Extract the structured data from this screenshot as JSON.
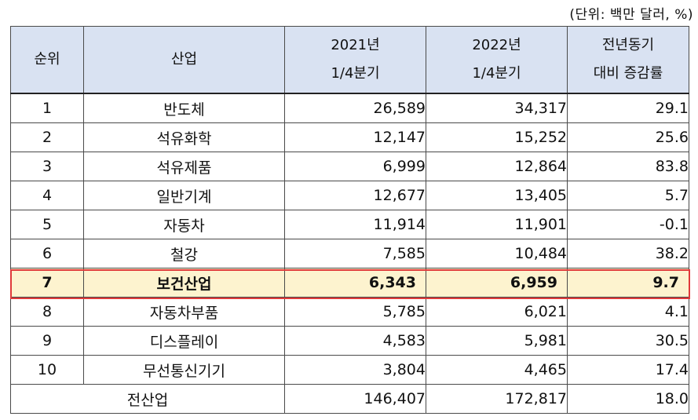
{
  "unit_note": "(단위: 백만 달러, %)",
  "headers": {
    "rank": "순위",
    "industry": "산업",
    "y2021": [
      "2021년",
      "1/4분기"
    ],
    "y2022": [
      "2022년",
      "1/4분기"
    ],
    "growth": [
      "전년동기",
      "대비 증감률"
    ]
  },
  "rows": [
    {
      "rank": "1",
      "industry": "반도체",
      "y2021": "26,589",
      "y2022": "34,317",
      "growth": "29.1"
    },
    {
      "rank": "2",
      "industry": "석유화학",
      "y2021": "12,147",
      "y2022": "15,252",
      "growth": "25.6"
    },
    {
      "rank": "3",
      "industry": "석유제품",
      "y2021": "6,999",
      "y2022": "12,864",
      "growth": "83.8"
    },
    {
      "rank": "4",
      "industry": "일반기계",
      "y2021": "12,677",
      "y2022": "13,405",
      "growth": "5.7"
    },
    {
      "rank": "5",
      "industry": "자동차",
      "y2021": "11,914",
      "y2022": "11,901",
      "growth": "-0.1"
    },
    {
      "rank": "6",
      "industry": "철강",
      "y2021": "7,585",
      "y2022": "10,484",
      "growth": "38.2"
    },
    {
      "rank": "7",
      "industry": "보건산업",
      "y2021": "6,343",
      "y2022": "6,959",
      "growth": "9.7"
    },
    {
      "rank": "8",
      "industry": "자동차부품",
      "y2021": "5,785",
      "y2022": "6,021",
      "growth": "4.1"
    },
    {
      "rank": "9",
      "industry": "디스플레이",
      "y2021": "4,583",
      "y2022": "5,981",
      "growth": "30.5"
    },
    {
      "rank": "10",
      "industry": "무선통신기기",
      "y2021": "3,804",
      "y2022": "4,465",
      "growth": "17.4"
    }
  ],
  "total": {
    "label": "전산업",
    "y2021": "146,407",
    "y2022": "172,817",
    "growth": "18.0"
  },
  "highlight_color": "#e03a3a"
}
